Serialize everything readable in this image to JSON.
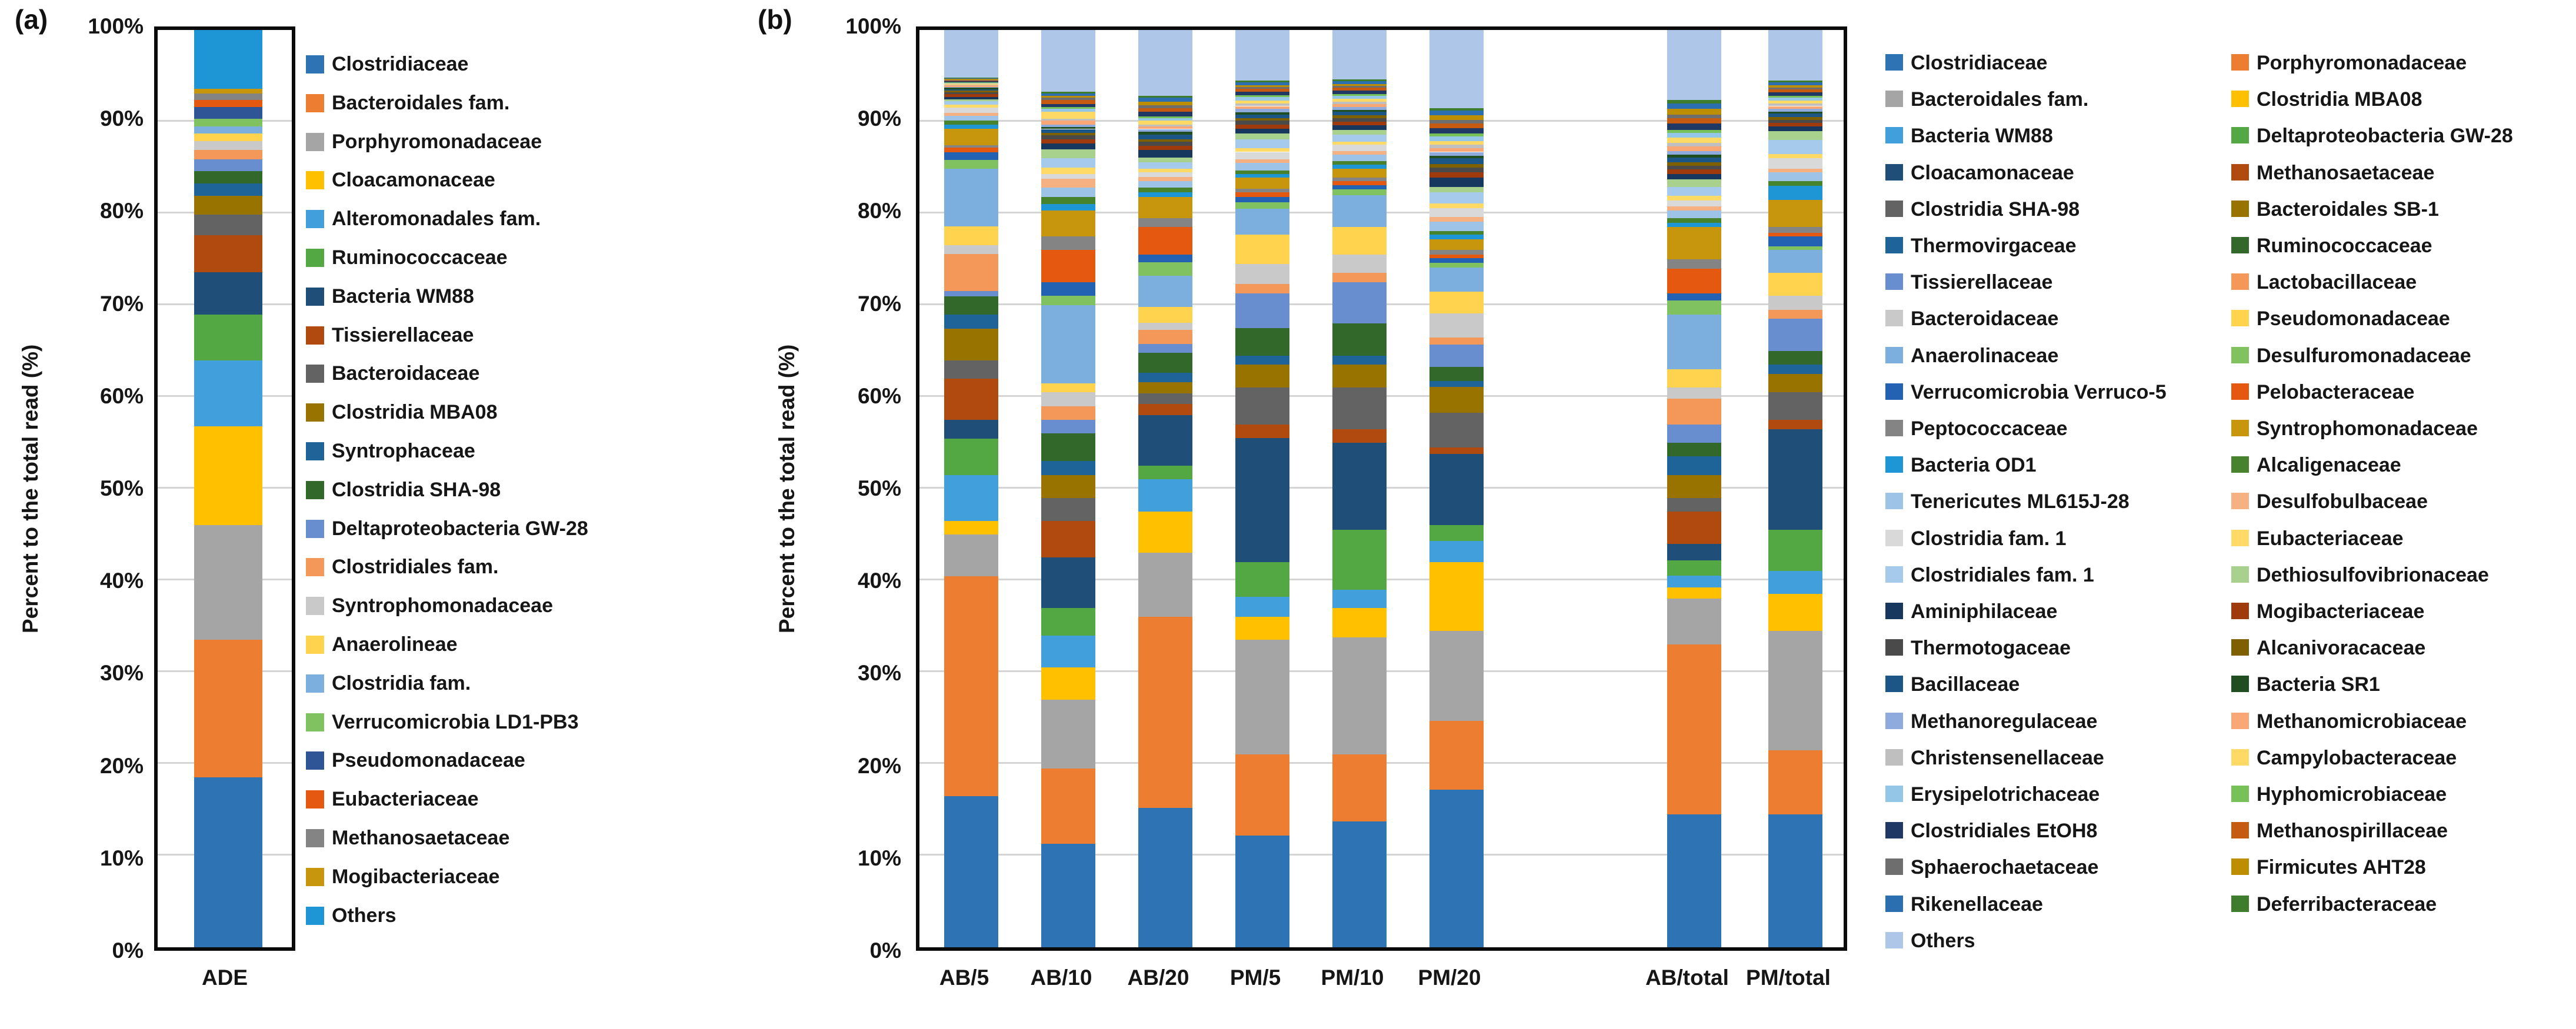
{
  "figure": {
    "panel_a": {
      "label": "(a)",
      "y_axis_title": "Percent to the total read (%)",
      "y_tick_labels": [
        "0%",
        "10%",
        "20%",
        "30%",
        "40%",
        "50%",
        "60%",
        "70%",
        "80%",
        "90%",
        "100%"
      ],
      "category": "ADE"
    },
    "panel_b": {
      "label": "(b)",
      "y_axis_title": "Percent to the total read (%)",
      "y_tick_labels": [
        "0%",
        "10%",
        "20%",
        "30%",
        "40%",
        "50%",
        "60%",
        "70%",
        "80%",
        "90%",
        "100%"
      ],
      "categories": [
        "AB/5",
        "AB/10",
        "AB/20",
        "PM/5",
        "PM/10",
        "PM/20",
        "AB/total",
        "PM/total"
      ]
    }
  },
  "chart_data": [
    {
      "type": "bar",
      "stacked": true,
      "panel": "a",
      "title": "",
      "xlabel": "",
      "ylabel": "Percent to the total read (%)",
      "ylim": [
        0,
        100
      ],
      "grid": true,
      "legend_position": "right",
      "categories": [
        "ADE"
      ],
      "series": [
        {
          "name": "Clostridiaceae",
          "color": "#2E74B5"
        },
        {
          "name": "Bacteroidales fam.",
          "color": "#ED7D31"
        },
        {
          "name": "Porphyromonadaceae",
          "color": "#A5A5A5"
        },
        {
          "name": "Cloacamonaceae",
          "color": "#FFC000"
        },
        {
          "name": "Alteromonadales fam.",
          "color": "#41A0DC"
        },
        {
          "name": "Ruminococcaceae",
          "color": "#53A843"
        },
        {
          "name": "Bacteria WM88",
          "color": "#1F4E79"
        },
        {
          "name": "Tissierellaceae",
          "color": "#B04A0E"
        },
        {
          "name": "Bacteroidaceae",
          "color": "#636363"
        },
        {
          "name": "Clostridia MBA08",
          "color": "#997300"
        },
        {
          "name": "Syntrophaceae",
          "color": "#1F6499"
        },
        {
          "name": "Clostridia SHA-98",
          "color": "#33682B"
        },
        {
          "name": "Deltaproteobacteria GW-28",
          "color": "#698ED0"
        },
        {
          "name": "Clostridiales fam.",
          "color": "#F4985A"
        },
        {
          "name": "Syntrophomonadaceae",
          "color": "#C9C9C9"
        },
        {
          "name": "Anaerolineae",
          "color": "#FFD34D"
        },
        {
          "name": "Clostridia fam.",
          "color": "#7CAFDD"
        },
        {
          "name": "Verrucomicrobia LD1-PB3",
          "color": "#7FC25F"
        },
        {
          "name": "Pseudomonadaceae",
          "color": "#2F5597"
        },
        {
          "name": "Eubacteriaceae",
          "color": "#E4590F"
        },
        {
          "name": "Methanosaetaceae",
          "color": "#848484"
        },
        {
          "name": "Mogibacteriaceae",
          "color": "#C8960C"
        },
        {
          "name": "Others",
          "color": "#1E95D4"
        }
      ],
      "bars": [
        {
          "label": "ADE",
          "values": [
            18.5,
            15.0,
            12.5,
            10.8,
            7.2,
            5.0,
            4.6,
            4.0,
            2.3,
            2.0,
            1.4,
            1.3,
            1.3,
            1.0,
            1.0,
            0.8,
            0.8,
            0.8,
            1.3,
            0.8,
            0.7,
            0.5,
            6.4
          ]
        }
      ]
    },
    {
      "type": "bar",
      "stacked": true,
      "panel": "b",
      "title": "",
      "xlabel": "",
      "ylabel": "Percent to the total read (%)",
      "ylim": [
        0,
        100
      ],
      "grid": true,
      "legend_position": "right",
      "categories": [
        "AB/5",
        "AB/10",
        "AB/20",
        "PM/5",
        "PM/10",
        "PM/20",
        "AB/total",
        "PM/total"
      ],
      "series": [
        {
          "name": "Clostridiaceae",
          "color": "#2E74B5"
        },
        {
          "name": "Porphyromonadaceae",
          "color": "#ED7D31"
        },
        {
          "name": "Bacteroidales fam.",
          "color": "#A5A5A5"
        },
        {
          "name": "Clostridia MBA08",
          "color": "#FFC000"
        },
        {
          "name": "Bacteria WM88",
          "color": "#41A0DC"
        },
        {
          "name": "Deltaproteobacteria GW-28",
          "color": "#53A843"
        },
        {
          "name": "Cloacamonaceae",
          "color": "#1F4E79"
        },
        {
          "name": "Methanosaetaceae",
          "color": "#B04A0E"
        },
        {
          "name": "Clostridia SHA-98",
          "color": "#636363"
        },
        {
          "name": "Bacteroidales SB-1",
          "color": "#997300"
        },
        {
          "name": "Thermovirgaceae",
          "color": "#1F6499"
        },
        {
          "name": "Ruminococcaceae",
          "color": "#33682B"
        },
        {
          "name": "Tissierellaceae",
          "color": "#698ED0"
        },
        {
          "name": "Lactobacillaceae",
          "color": "#F4985A"
        },
        {
          "name": "Bacteroidaceae",
          "color": "#C9C9C9"
        },
        {
          "name": "Pseudomonadaceae",
          "color": "#FFD34D"
        },
        {
          "name": "Anaerolinaceae",
          "color": "#7CAFDD"
        },
        {
          "name": "Desulfuromonadaceae",
          "color": "#7FC25F"
        },
        {
          "name": "Verrucomicrobia Verruco-5",
          "color": "#2361B2"
        },
        {
          "name": "Pelobacteraceae",
          "color": "#E4590F"
        },
        {
          "name": "Peptococcaceae",
          "color": "#848484"
        },
        {
          "name": "Syntrophomonadaceae",
          "color": "#C8960C"
        },
        {
          "name": "Bacteria OD1",
          "color": "#1E95D4"
        },
        {
          "name": "Alcaligenaceae",
          "color": "#47832C"
        },
        {
          "name": "Tenericutes ML615J-28",
          "color": "#9DC3E6"
        },
        {
          "name": "Desulfobulbaceae",
          "color": "#F6B183"
        },
        {
          "name": "Clostridia fam. 1",
          "color": "#D9D9D9"
        },
        {
          "name": "Eubacteriaceae",
          "color": "#FFDA66"
        },
        {
          "name": "Clostridiales fam. 1",
          "color": "#A6CAEC"
        },
        {
          "name": "Dethiosulfovibrionaceae",
          "color": "#A9D18E"
        },
        {
          "name": "Aminiphilaceae",
          "color": "#17375E"
        },
        {
          "name": "Mogibacteriaceae",
          "color": "#9E3A0C"
        },
        {
          "name": "Thermotogaceae",
          "color": "#4A4A4A"
        },
        {
          "name": "Alcanivoracaceae",
          "color": "#7F6000"
        },
        {
          "name": "Bacillaceae",
          "color": "#1C5687"
        },
        {
          "name": "Bacteria SR1",
          "color": "#1F4E20"
        },
        {
          "name": "Methanoregulaceae",
          "color": "#8FAADC"
        },
        {
          "name": "Methanomicrobiaceae",
          "color": "#F9A875"
        },
        {
          "name": "Christensenellaceae",
          "color": "#BFBFBF"
        },
        {
          "name": "Campylobacteraceae",
          "color": "#FFD966"
        },
        {
          "name": "Erysipelotrichaceae",
          "color": "#94C6E7"
        },
        {
          "name": "Hyphomicrobiaceae",
          "color": "#77C159"
        },
        {
          "name": "Clostridiales EtOH8",
          "color": "#1F3864"
        },
        {
          "name": "Methanospirillaceae",
          "color": "#C55A11"
        },
        {
          "name": "Sphaerochaetaceae",
          "color": "#6E6E6E"
        },
        {
          "name": "Firmicutes AHT28",
          "color": "#BD8E00"
        },
        {
          "name": "Rikenellaceae",
          "color": "#2C6FB0"
        },
        {
          "name": "Deferribacteraceae",
          "color": "#3E7D2B"
        },
        {
          "name": "Others",
          "color": "#AEC7E8"
        }
      ],
      "bars": [
        {
          "label": "AB/5",
          "values": [
            16.5,
            24.0,
            4.5,
            1.5,
            5.0,
            4.0,
            2.0,
            4.5,
            2.0,
            3.5,
            1.5,
            2.0,
            0.6,
            4.0,
            1.0,
            2.0,
            6.3,
            1.0,
            0.8,
            0.5,
            0.3,
            1.8,
            0.4,
            0.5,
            0.5,
            0.3,
            0.6,
            0.3,
            0.4,
            0.2,
            0.25,
            0.3,
            0.2,
            0.2,
            0.15,
            0.15,
            0.1,
            0.15,
            0.1,
            0.1,
            0.1,
            0.05,
            0.1,
            0.1,
            0.05,
            0.1,
            0.1,
            0.05,
            5.2
          ]
        },
        {
          "label": "AB/10",
          "values": [
            11.3,
            8.2,
            7.5,
            3.5,
            3.5,
            3.0,
            5.5,
            4.0,
            2.5,
            2.5,
            1.5,
            3.0,
            1.5,
            1.5,
            1.5,
            1.0,
            8.5,
            1.0,
            1.5,
            3.5,
            1.5,
            2.8,
            0.7,
            0.8,
            1.0,
            1.0,
            0.5,
            0.7,
            1.0,
            1.0,
            0.6,
            0.5,
            0.4,
            0.3,
            0.4,
            0.2,
            0.3,
            0.4,
            0.2,
            0.8,
            0.3,
            0.2,
            0.3,
            0.5,
            0.2,
            0.2,
            0.3,
            0.2,
            6.7
          ]
        },
        {
          "label": "AB/20",
          "values": [
            15.2,
            20.8,
            7.0,
            4.5,
            3.5,
            1.5,
            5.5,
            1.2,
            1.2,
            1.2,
            1.0,
            2.2,
            1.0,
            1.5,
            0.8,
            1.7,
            3.4,
            1.5,
            0.8,
            3.0,
            1.0,
            2.3,
            0.5,
            0.5,
            0.7,
            0.5,
            0.5,
            0.4,
            0.7,
            0.5,
            0.8,
            0.5,
            0.4,
            0.3,
            0.5,
            0.3,
            0.3,
            0.3,
            0.2,
            0.4,
            0.3,
            0.2,
            0.5,
            0.4,
            0.3,
            0.4,
            0.4,
            0.2,
            7.2
          ]
        },
        {
          "label": "PM/5",
          "values": [
            12.2,
            8.8,
            12.5,
            2.5,
            2.2,
            3.8,
            13.5,
            1.5,
            4.0,
            2.5,
            1.0,
            3.0,
            3.8,
            1.0,
            2.2,
            3.2,
            2.8,
            0.7,
            0.6,
            0.5,
            0.4,
            1.2,
            0.4,
            0.4,
            0.8,
            0.4,
            0.8,
            0.4,
            1.0,
            0.6,
            0.5,
            0.5,
            0.4,
            0.3,
            0.4,
            0.2,
            0.4,
            0.3,
            0.3,
            0.3,
            0.4,
            0.2,
            0.4,
            0.3,
            0.2,
            0.2,
            0.3,
            0.2,
            5.5
          ]
        },
        {
          "label": "PM/10",
          "values": [
            13.7,
            7.3,
            12.8,
            3.2,
            2.0,
            6.5,
            9.5,
            1.5,
            4.5,
            2.5,
            1.0,
            3.5,
            4.5,
            1.0,
            2.0,
            3.0,
            3.5,
            0.6,
            0.5,
            0.4,
            0.4,
            1.0,
            0.4,
            0.4,
            0.7,
            0.4,
            0.7,
            0.3,
            0.8,
            0.5,
            0.5,
            0.4,
            0.4,
            0.3,
            0.4,
            0.2,
            0.3,
            0.3,
            0.3,
            0.3,
            0.3,
            0.2,
            0.4,
            0.3,
            0.2,
            0.2,
            0.3,
            0.2,
            5.4
          ]
        },
        {
          "label": "PM/20",
          "values": [
            17.2,
            7.5,
            9.8,
            7.5,
            2.3,
            1.7,
            7.8,
            0.7,
            3.8,
            2.8,
            0.6,
            1.6,
            2.4,
            0.8,
            2.6,
            2.4,
            2.6,
            0.5,
            0.5,
            0.4,
            0.5,
            1.2,
            0.5,
            0.4,
            1.0,
            0.5,
            1.0,
            0.5,
            1.2,
            0.6,
            1.0,
            0.6,
            0.5,
            0.4,
            0.6,
            0.3,
            0.4,
            0.4,
            0.4,
            0.4,
            0.5,
            0.3,
            0.6,
            0.5,
            0.4,
            0.5,
            0.5,
            0.3,
            8.5
          ]
        },
        {
          "label": "AB/total",
          "values": [
            14.5,
            18.5,
            5.0,
            1.2,
            1.3,
            1.7,
            1.8,
            3.5,
            1.5,
            2.5,
            2.0,
            1.5,
            2.0,
            2.8,
            1.2,
            2.0,
            6.0,
            1.5,
            0.8,
            2.7,
            1.0,
            3.5,
            0.5,
            0.5,
            0.8,
            0.5,
            0.6,
            0.5,
            1.0,
            0.8,
            0.6,
            0.5,
            0.4,
            0.4,
            0.5,
            0.3,
            0.4,
            0.5,
            0.4,
            0.6,
            0.5,
            0.3,
            0.7,
            0.6,
            0.4,
            0.6,
            0.6,
            0.4,
            7.6
          ]
        },
        {
          "label": "PM/total",
          "values": [
            14.5,
            7.0,
            13.0,
            4.0,
            2.5,
            4.5,
            11.0,
            1.0,
            3.0,
            2.0,
            1.0,
            1.5,
            3.5,
            1.0,
            1.5,
            2.5,
            2.5,
            0.4,
            1.1,
            0.4,
            0.6,
            3.0,
            1.5,
            0.5,
            1.0,
            0.4,
            1.1,
            0.5,
            1.5,
            1.0,
            0.5,
            0.4,
            0.3,
            0.3,
            0.4,
            0.2,
            0.3,
            0.3,
            0.3,
            0.3,
            0.3,
            0.2,
            0.4,
            0.3,
            0.2,
            0.3,
            0.3,
            0.2,
            5.5
          ]
        }
      ]
    }
  ]
}
